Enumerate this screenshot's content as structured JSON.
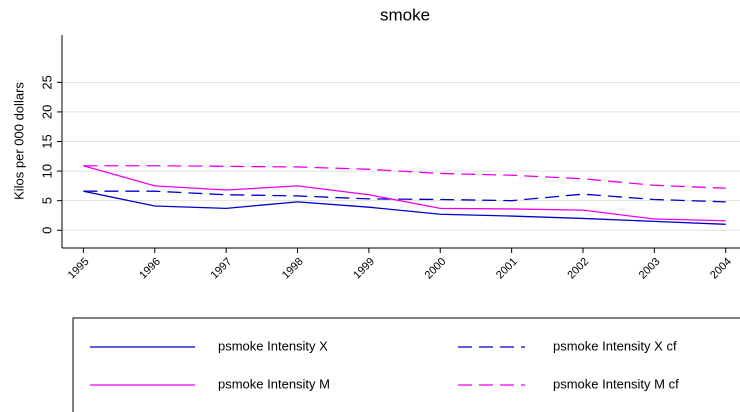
{
  "chart_data": {
    "type": "line",
    "title": "smoke",
    "y_label": "Kilos per 000 dollars",
    "x": [
      1995,
      1996,
      1997,
      1998,
      1999,
      2000,
      2001,
      2002,
      2003,
      2004
    ],
    "xlim": [
      1994.7,
      2004.2
    ],
    "xticks": [
      1995,
      1996,
      1997,
      1998,
      1999,
      2000,
      2001,
      2002,
      2003,
      2004
    ],
    "ylim": [
      -3,
      33
    ],
    "yticks": [
      0,
      5,
      10,
      15,
      20,
      25
    ],
    "grid": true,
    "series": [
      {
        "name": "psmoke Intensity X",
        "color": "#0000cc",
        "style": "solid",
        "values": [
          6.6,
          4.1,
          3.7,
          4.8,
          3.9,
          2.7,
          2.4,
          2.0,
          1.5,
          1.0
        ]
      },
      {
        "name": "psmoke Intensity X cf",
        "color": "#0000cc",
        "style": "dashed",
        "values": [
          6.6,
          6.6,
          6.0,
          5.8,
          5.3,
          5.2,
          5.0,
          6.1,
          5.2,
          4.8
        ]
      },
      {
        "name": "psmoke Intensity M",
        "color": "#ee00ee",
        "style": "solid",
        "values": [
          10.9,
          7.5,
          6.8,
          7.5,
          6.0,
          3.7,
          3.6,
          3.4,
          1.9,
          1.6
        ]
      },
      {
        "name": "psmoke Intensity M cf",
        "color": "#ee00ee",
        "style": "dashed",
        "values": [
          10.9,
          10.9,
          10.8,
          10.7,
          10.3,
          9.6,
          9.3,
          8.7,
          7.6,
          7.1
        ]
      }
    ]
  }
}
